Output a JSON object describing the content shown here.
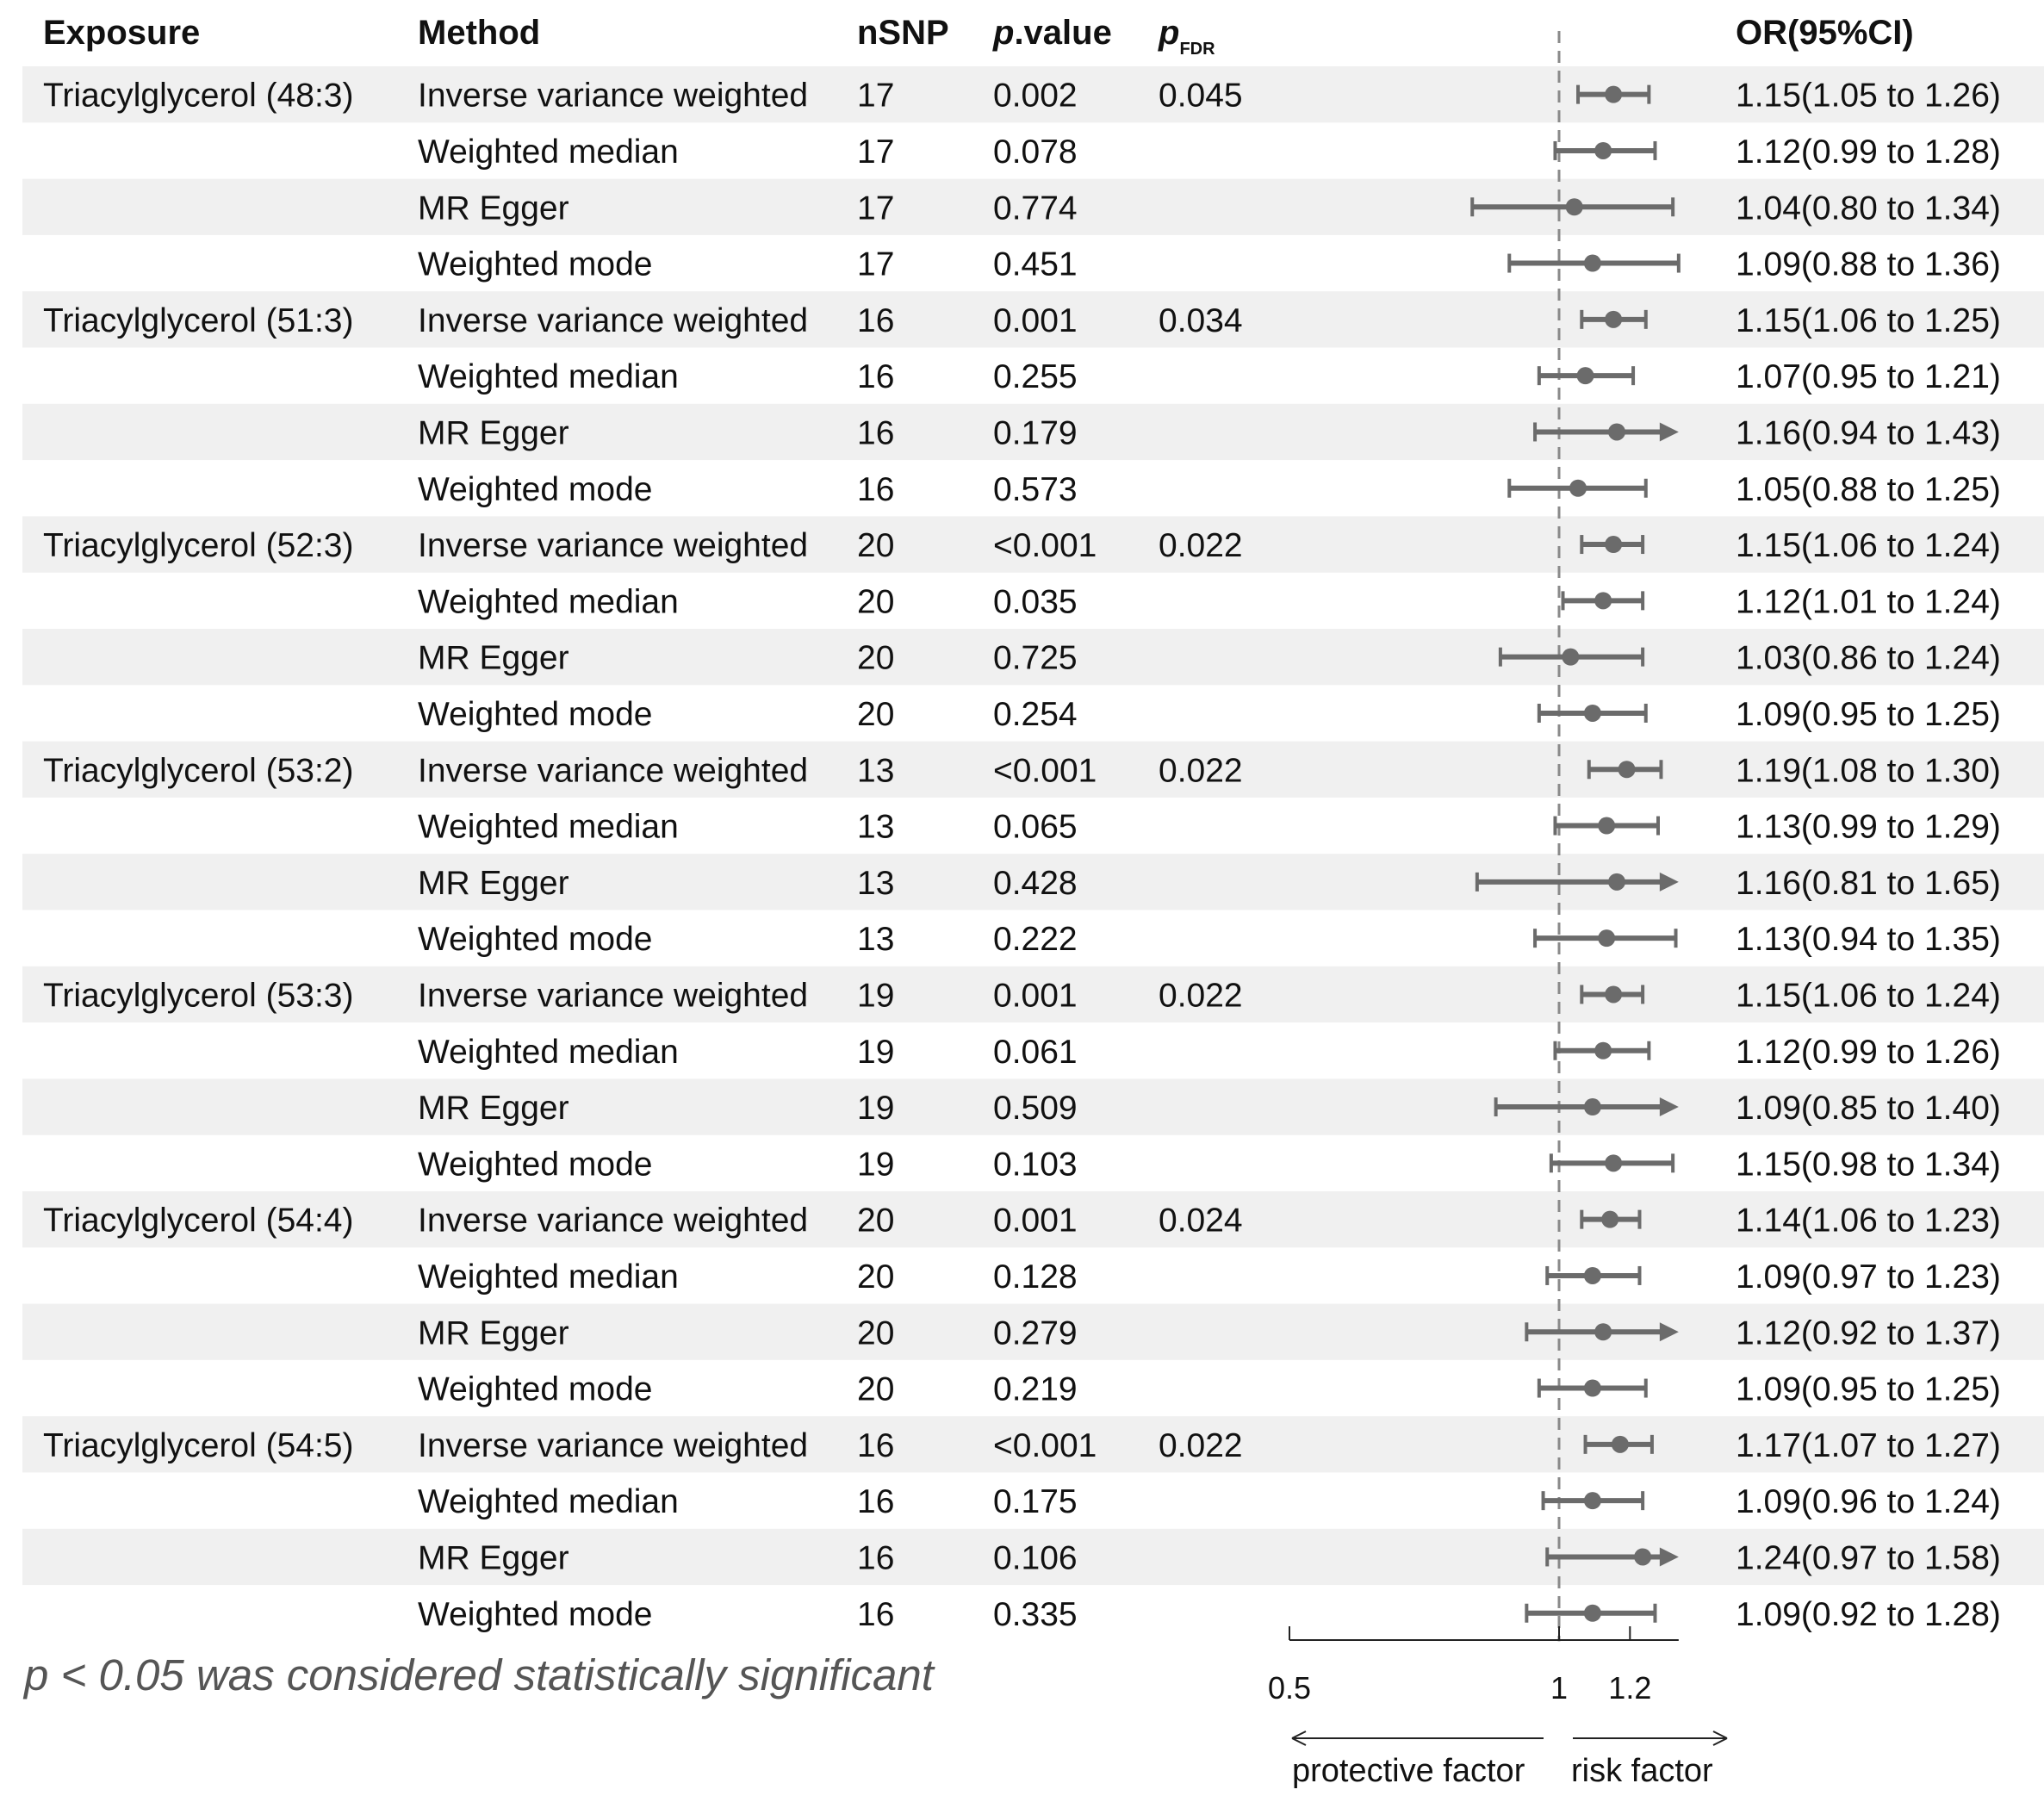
{
  "headers": {
    "exposure": "Exposure",
    "method": "Method",
    "nsnp": "nSNP",
    "pvalue_italic": "p",
    "pvalue_rest": ".value",
    "pfdr_main": "p",
    "pfdr_sub": "FDR",
    "or": "OR(95%CI)"
  },
  "footnote": "p < 0.05 was considered statistically significant",
  "colors": {
    "band": "#f0f0f0",
    "marker": "#6b6b6b",
    "refline": "#8a8a8a",
    "text": "#111111",
    "footnote": "#555555"
  },
  "chart_data": {
    "type": "forest",
    "x_scale": "log",
    "xlim": [
      0.5,
      1.36
    ],
    "xticks": [
      0.5,
      1,
      1.2
    ],
    "xtick_labels": [
      "0.5",
      "1",
      "1.2"
    ],
    "reference_line": 1,
    "arrow_labels": {
      "left": "protective factor",
      "right": "risk factor"
    },
    "rows": [
      {
        "exposure": "Triacylglycerol (48:3)",
        "method": "Inverse variance weighted",
        "nsnp": "17",
        "p": "0.002",
        "pfdr": "0.045",
        "or_text": "1.15(1.05 to 1.26)",
        "or": 1.15,
        "lo": 1.05,
        "hi": 1.26
      },
      {
        "exposure": "",
        "method": "Weighted median",
        "nsnp": "17",
        "p": "0.078",
        "pfdr": "",
        "or_text": "1.12(0.99 to 1.28)",
        "or": 1.12,
        "lo": 0.99,
        "hi": 1.28
      },
      {
        "exposure": "",
        "method": "MR Egger",
        "nsnp": "17",
        "p": "0.774",
        "pfdr": "",
        "or_text": "1.04(0.80 to 1.34)",
        "or": 1.04,
        "lo": 0.8,
        "hi": 1.34
      },
      {
        "exposure": "",
        "method": "Weighted mode",
        "nsnp": "17",
        "p": "0.451",
        "pfdr": "",
        "or_text": "1.09(0.88 to 1.36)",
        "or": 1.09,
        "lo": 0.88,
        "hi": 1.36
      },
      {
        "exposure": "Triacylglycerol (51:3)",
        "method": "Inverse variance weighted",
        "nsnp": "16",
        "p": "0.001",
        "pfdr": "0.034",
        "or_text": "1.15(1.06 to 1.25)",
        "or": 1.15,
        "lo": 1.06,
        "hi": 1.25
      },
      {
        "exposure": "",
        "method": "Weighted median",
        "nsnp": "16",
        "p": "0.255",
        "pfdr": "",
        "or_text": "1.07(0.95 to 1.21)",
        "or": 1.07,
        "lo": 0.95,
        "hi": 1.21
      },
      {
        "exposure": "",
        "method": "MR Egger",
        "nsnp": "16",
        "p": "0.179",
        "pfdr": "",
        "or_text": "1.16(0.94 to 1.43)",
        "or": 1.16,
        "lo": 0.94,
        "hi": 1.43
      },
      {
        "exposure": "",
        "method": "Weighted mode",
        "nsnp": "16",
        "p": "0.573",
        "pfdr": "",
        "or_text": "1.05(0.88 to 1.25)",
        "or": 1.05,
        "lo": 0.88,
        "hi": 1.25
      },
      {
        "exposure": "Triacylglycerol (52:3)",
        "method": "Inverse variance weighted",
        "nsnp": "20",
        "p": "<0.001",
        "pfdr": "0.022",
        "or_text": "1.15(1.06 to 1.24)",
        "or": 1.15,
        "lo": 1.06,
        "hi": 1.24
      },
      {
        "exposure": "",
        "method": "Weighted median",
        "nsnp": "20",
        "p": "0.035",
        "pfdr": "",
        "or_text": "1.12(1.01 to 1.24)",
        "or": 1.12,
        "lo": 1.01,
        "hi": 1.24
      },
      {
        "exposure": "",
        "method": "MR Egger",
        "nsnp": "20",
        "p": "0.725",
        "pfdr": "",
        "or_text": "1.03(0.86 to 1.24)",
        "or": 1.03,
        "lo": 0.86,
        "hi": 1.24
      },
      {
        "exposure": "",
        "method": "Weighted mode",
        "nsnp": "20",
        "p": "0.254",
        "pfdr": "",
        "or_text": "1.09(0.95 to 1.25)",
        "or": 1.09,
        "lo": 0.95,
        "hi": 1.25
      },
      {
        "exposure": "Triacylglycerol (53:2)",
        "method": "Inverse variance weighted",
        "nsnp": "13",
        "p": "<0.001",
        "pfdr": "0.022",
        "or_text": "1.19(1.08 to 1.30)",
        "or": 1.19,
        "lo": 1.08,
        "hi": 1.3
      },
      {
        "exposure": "",
        "method": "Weighted median",
        "nsnp": "13",
        "p": "0.065",
        "pfdr": "",
        "or_text": "1.13(0.99 to 1.29)",
        "or": 1.13,
        "lo": 0.99,
        "hi": 1.29
      },
      {
        "exposure": "",
        "method": "MR Egger",
        "nsnp": "13",
        "p": "0.428",
        "pfdr": "",
        "or_text": "1.16(0.81 to 1.65)",
        "or": 1.16,
        "lo": 0.81,
        "hi": 1.65
      },
      {
        "exposure": "",
        "method": "Weighted mode",
        "nsnp": "13",
        "p": "0.222",
        "pfdr": "",
        "or_text": "1.13(0.94 to 1.35)",
        "or": 1.13,
        "lo": 0.94,
        "hi": 1.35
      },
      {
        "exposure": "Triacylglycerol (53:3)",
        "method": "Inverse variance weighted",
        "nsnp": "19",
        "p": "0.001",
        "pfdr": "0.022",
        "or_text": "1.15(1.06 to 1.24)",
        "or": 1.15,
        "lo": 1.06,
        "hi": 1.24
      },
      {
        "exposure": "",
        "method": "Weighted median",
        "nsnp": "19",
        "p": "0.061",
        "pfdr": "",
        "or_text": "1.12(0.99 to 1.26)",
        "or": 1.12,
        "lo": 0.99,
        "hi": 1.26
      },
      {
        "exposure": "",
        "method": "MR Egger",
        "nsnp": "19",
        "p": "0.509",
        "pfdr": "",
        "or_text": "1.09(0.85 to 1.40)",
        "or": 1.09,
        "lo": 0.85,
        "hi": 1.4
      },
      {
        "exposure": "",
        "method": "Weighted mode",
        "nsnp": "19",
        "p": "0.103",
        "pfdr": "",
        "or_text": "1.15(0.98 to 1.34)",
        "or": 1.15,
        "lo": 0.98,
        "hi": 1.34
      },
      {
        "exposure": "Triacylglycerol (54:4)",
        "method": "Inverse variance weighted",
        "nsnp": "20",
        "p": "0.001",
        "pfdr": "0.024",
        "or_text": "1.14(1.06 to 1.23)",
        "or": 1.14,
        "lo": 1.06,
        "hi": 1.23
      },
      {
        "exposure": "",
        "method": "Weighted median",
        "nsnp": "20",
        "p": "0.128",
        "pfdr": "",
        "or_text": "1.09(0.97 to 1.23)",
        "or": 1.09,
        "lo": 0.97,
        "hi": 1.23
      },
      {
        "exposure": "",
        "method": "MR Egger",
        "nsnp": "20",
        "p": "0.279",
        "pfdr": "",
        "or_text": "1.12(0.92 to 1.37)",
        "or": 1.12,
        "lo": 0.92,
        "hi": 1.37
      },
      {
        "exposure": "",
        "method": "Weighted mode",
        "nsnp": "20",
        "p": "0.219",
        "pfdr": "",
        "or_text": "1.09(0.95 to 1.25)",
        "or": 1.09,
        "lo": 0.95,
        "hi": 1.25
      },
      {
        "exposure": "Triacylglycerol (54:5)",
        "method": "Inverse variance weighted",
        "nsnp": "16",
        "p": "<0.001",
        "pfdr": "0.022",
        "or_text": "1.17(1.07 to 1.27)",
        "or": 1.17,
        "lo": 1.07,
        "hi": 1.27
      },
      {
        "exposure": "",
        "method": "Weighted median",
        "nsnp": "16",
        "p": "0.175",
        "pfdr": "",
        "or_text": "1.09(0.96 to 1.24)",
        "or": 1.09,
        "lo": 0.96,
        "hi": 1.24
      },
      {
        "exposure": "",
        "method": "MR Egger",
        "nsnp": "16",
        "p": "0.106",
        "pfdr": "",
        "or_text": "1.24(0.97 to 1.58)",
        "or": 1.24,
        "lo": 0.97,
        "hi": 1.58
      },
      {
        "exposure": "",
        "method": "Weighted mode",
        "nsnp": "16",
        "p": "0.335",
        "pfdr": "",
        "or_text": "1.09(0.92 to 1.28)",
        "or": 1.09,
        "lo": 0.92,
        "hi": 1.28
      }
    ]
  }
}
